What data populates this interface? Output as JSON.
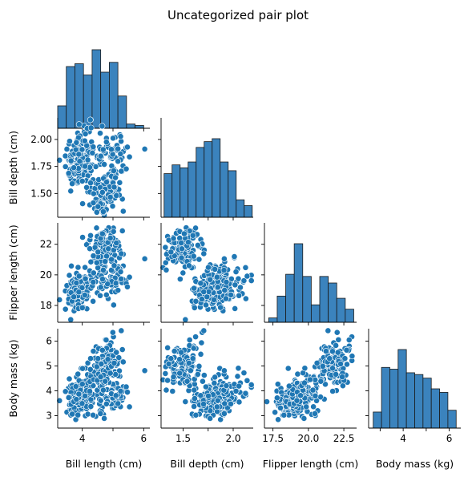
{
  "chart_data": {
    "type": "scatter",
    "title": "Uncategorized pair plot",
    "variables": [
      {
        "key": "bill_length",
        "label": "Bill length (cm)",
        "range": [
          3.2,
          6.2
        ],
        "ticks": [
          4,
          5,
          6
        ],
        "tick_labels": [
          "4",
          "",
          "6"
        ]
      },
      {
        "key": "bill_depth",
        "label": "Bill depth (cm)",
        "range": [
          1.28,
          2.2
        ],
        "ticks": [
          1.5,
          1.75,
          2.0
        ],
        "tick_labels": [
          "1.5",
          "",
          "2.0"
        ]
      },
      {
        "key": "flipper_length",
        "label": "Flipper length (cm)",
        "range": [
          16.9,
          23.4
        ],
        "ticks": [
          17.5,
          20.0,
          22.5
        ],
        "tick_labels": [
          "17.5",
          "20.0",
          "22.5"
        ]
      },
      {
        "key": "body_mass",
        "label": "Body mass (kg)",
        "range": [
          2.5,
          6.5
        ],
        "ticks": [
          3,
          4,
          5,
          6
        ],
        "tick_labels": [
          "",
          "4",
          "",
          "6"
        ]
      }
    ],
    "y_tick_labels": {
      "bill_depth": [
        "1.50",
        "1.75",
        "2.00"
      ],
      "flipper_length": [
        "18",
        "20",
        "22"
      ],
      "body_mass": [
        "3",
        "4",
        "5",
        "6"
      ]
    },
    "y_ticks": {
      "bill_depth": [
        1.5,
        1.75,
        2.0
      ],
      "flipper_length": [
        18,
        20,
        22
      ],
      "body_mass": [
        3,
        4,
        5,
        6
      ]
    },
    "histograms": {
      "bill_length": {
        "edges": [
          3.2,
          3.48,
          3.76,
          4.04,
          4.32,
          4.6,
          4.88,
          5.16,
          5.44,
          5.72,
          6.0
        ],
        "counts": [
          16,
          44,
          46,
          38,
          56,
          40,
          47,
          23,
          3,
          2
        ]
      },
      "bill_depth": {
        "edges": [
          1.31,
          1.39,
          1.47,
          1.55,
          1.63,
          1.71,
          1.79,
          1.87,
          1.95,
          2.03,
          2.11,
          2.19
        ],
        "counts": [
          15,
          18,
          17,
          19,
          24,
          26,
          27,
          19,
          16,
          6,
          4
        ]
      },
      "flipper_length": {
        "edges": [
          17.2,
          17.8,
          18.4,
          19.0,
          19.6,
          20.2,
          20.8,
          21.4,
          22.0,
          22.6,
          23.2
        ],
        "counts": [
          2,
          12,
          22,
          36,
          21,
          8,
          21,
          18,
          11,
          6
        ]
      },
      "body_mass": {
        "edges": [
          2.7,
          3.06,
          3.42,
          3.78,
          4.14,
          4.5,
          4.86,
          5.22,
          5.58,
          5.94,
          6.3
        ],
        "counts": [
          9,
          34,
          33,
          44,
          31,
          30,
          28,
          22,
          20,
          10
        ]
      }
    },
    "grid": false,
    "legend": "none"
  }
}
